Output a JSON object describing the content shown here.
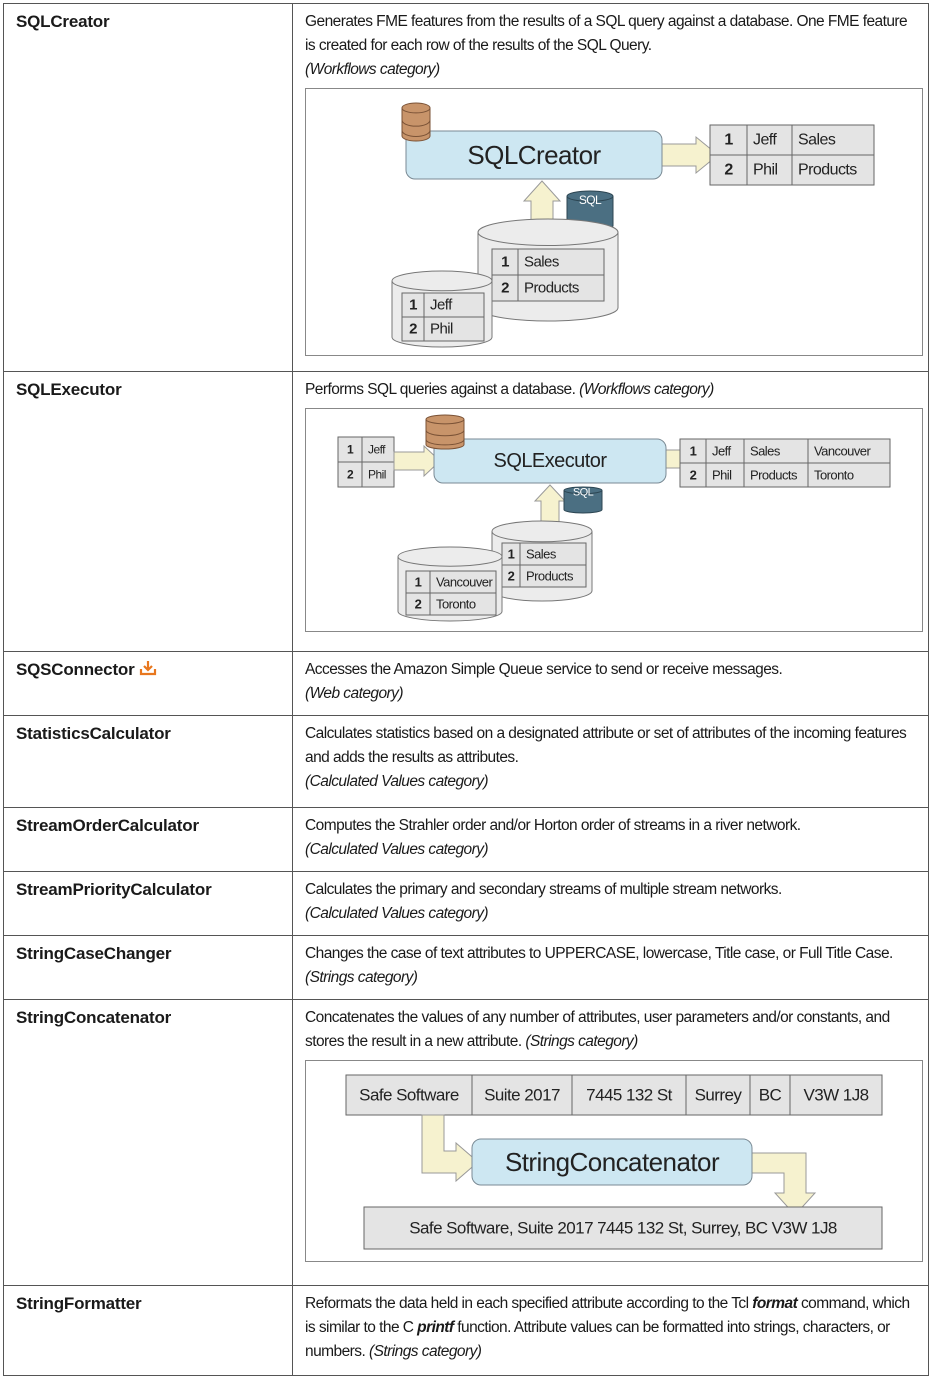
{
  "table": {
    "rows": [
      {
        "name": "SQLCreator",
        "description": "Generates FME features from the results of a SQL query against a database. One FME feature is created for each row of the results of the SQL Query.",
        "category": "(Workflows category)",
        "category_on_new_line": true,
        "diagram": {
          "kind": "sqlcreator",
          "transformer": "SQLCreator",
          "output": [
            [
              "1",
              "Jeff",
              "Sales"
            ],
            [
              "2",
              "Phil",
              "Products"
            ]
          ],
          "sql": "SQL",
          "database": [
            [
              "1",
              "Sales"
            ],
            [
              "2",
              "Products"
            ]
          ],
          "input_database": [
            [
              "1",
              "Jeff"
            ],
            [
              "2",
              "Phil"
            ]
          ]
        }
      },
      {
        "name": "SQLExecutor",
        "description": "Performs SQL queries against a database.",
        "category": "(Workflows category)",
        "category_on_new_line": false,
        "diagram": {
          "kind": "sqlexecutor",
          "input": [
            [
              "1",
              "Jeff"
            ],
            [
              "2",
              "Phil"
            ]
          ],
          "transformer": "SQLExecutor",
          "output": [
            [
              "1",
              "Jeff",
              "Sales",
              "Vancouver"
            ],
            [
              "2",
              "Phil",
              "Products",
              "Toronto"
            ]
          ],
          "sql": "SQL",
          "database": [
            [
              "1",
              "Sales"
            ],
            [
              "2",
              "Products"
            ]
          ],
          "input_database": [
            [
              "1",
              "Vancouver"
            ],
            [
              "2",
              "Toronto"
            ]
          ]
        }
      },
      {
        "name": "SQSConnector",
        "download_icon": true,
        "description": "Accesses the Amazon Simple Queue service to send or receive messages.",
        "category": "(Web category)",
        "category_on_new_line": true
      },
      {
        "name": "StatisticsCalculator",
        "description": "Calculates statistics based on a designated attribute or set of attributes of the incoming features and adds the results as attributes.",
        "category": "(Calculated Values category)",
        "category_on_new_line": true
      },
      {
        "name": "StreamOrderCalculator",
        "description": "Computes the Strahler order and/or Horton order of streams in a river network.",
        "category": "(Calculated Values category)",
        "category_on_new_line": true
      },
      {
        "name": "StreamPriorityCalculator",
        "description": "Calculates the primary and secondary streams of multiple stream networks.",
        "category": "(Calculated Values category)",
        "category_on_new_line": true
      },
      {
        "name": "StringCaseChanger",
        "description": "Changes the case of text attributes to UPPERCASE, lowercase, Title case, or Full Title Case.",
        "category": "(Strings category)",
        "category_on_new_line": false
      },
      {
        "name": "StringConcatenator",
        "description": "Concatenates the values of any number of attributes, user parameters and/or constants, and stores the result in a new attribute.",
        "category": "(Strings category)",
        "category_on_new_line": false,
        "diagram": {
          "kind": "concatenator",
          "input": [
            "Safe Software",
            "Suite 2017",
            "7445 132 St",
            "Surrey",
            "BC",
            "V3W 1J8"
          ],
          "transformer": "StringConcatenator",
          "output": "Safe Software, Suite 2017 7445 132 St, Surrey, BC V3W 1J8"
        }
      },
      {
        "name": "StringFormatter",
        "description": [
          "Reformats the data held in each specified attribute according to the Tcl ",
          "format",
          " command, which is similar to the C ",
          "printf",
          " function. Attribute values can be formatted into strings, characters, or numbers."
        ],
        "emphasized_parts": [
          1,
          3
        ],
        "category": "(Strings category)",
        "category_on_new_line": false
      }
    ]
  }
}
